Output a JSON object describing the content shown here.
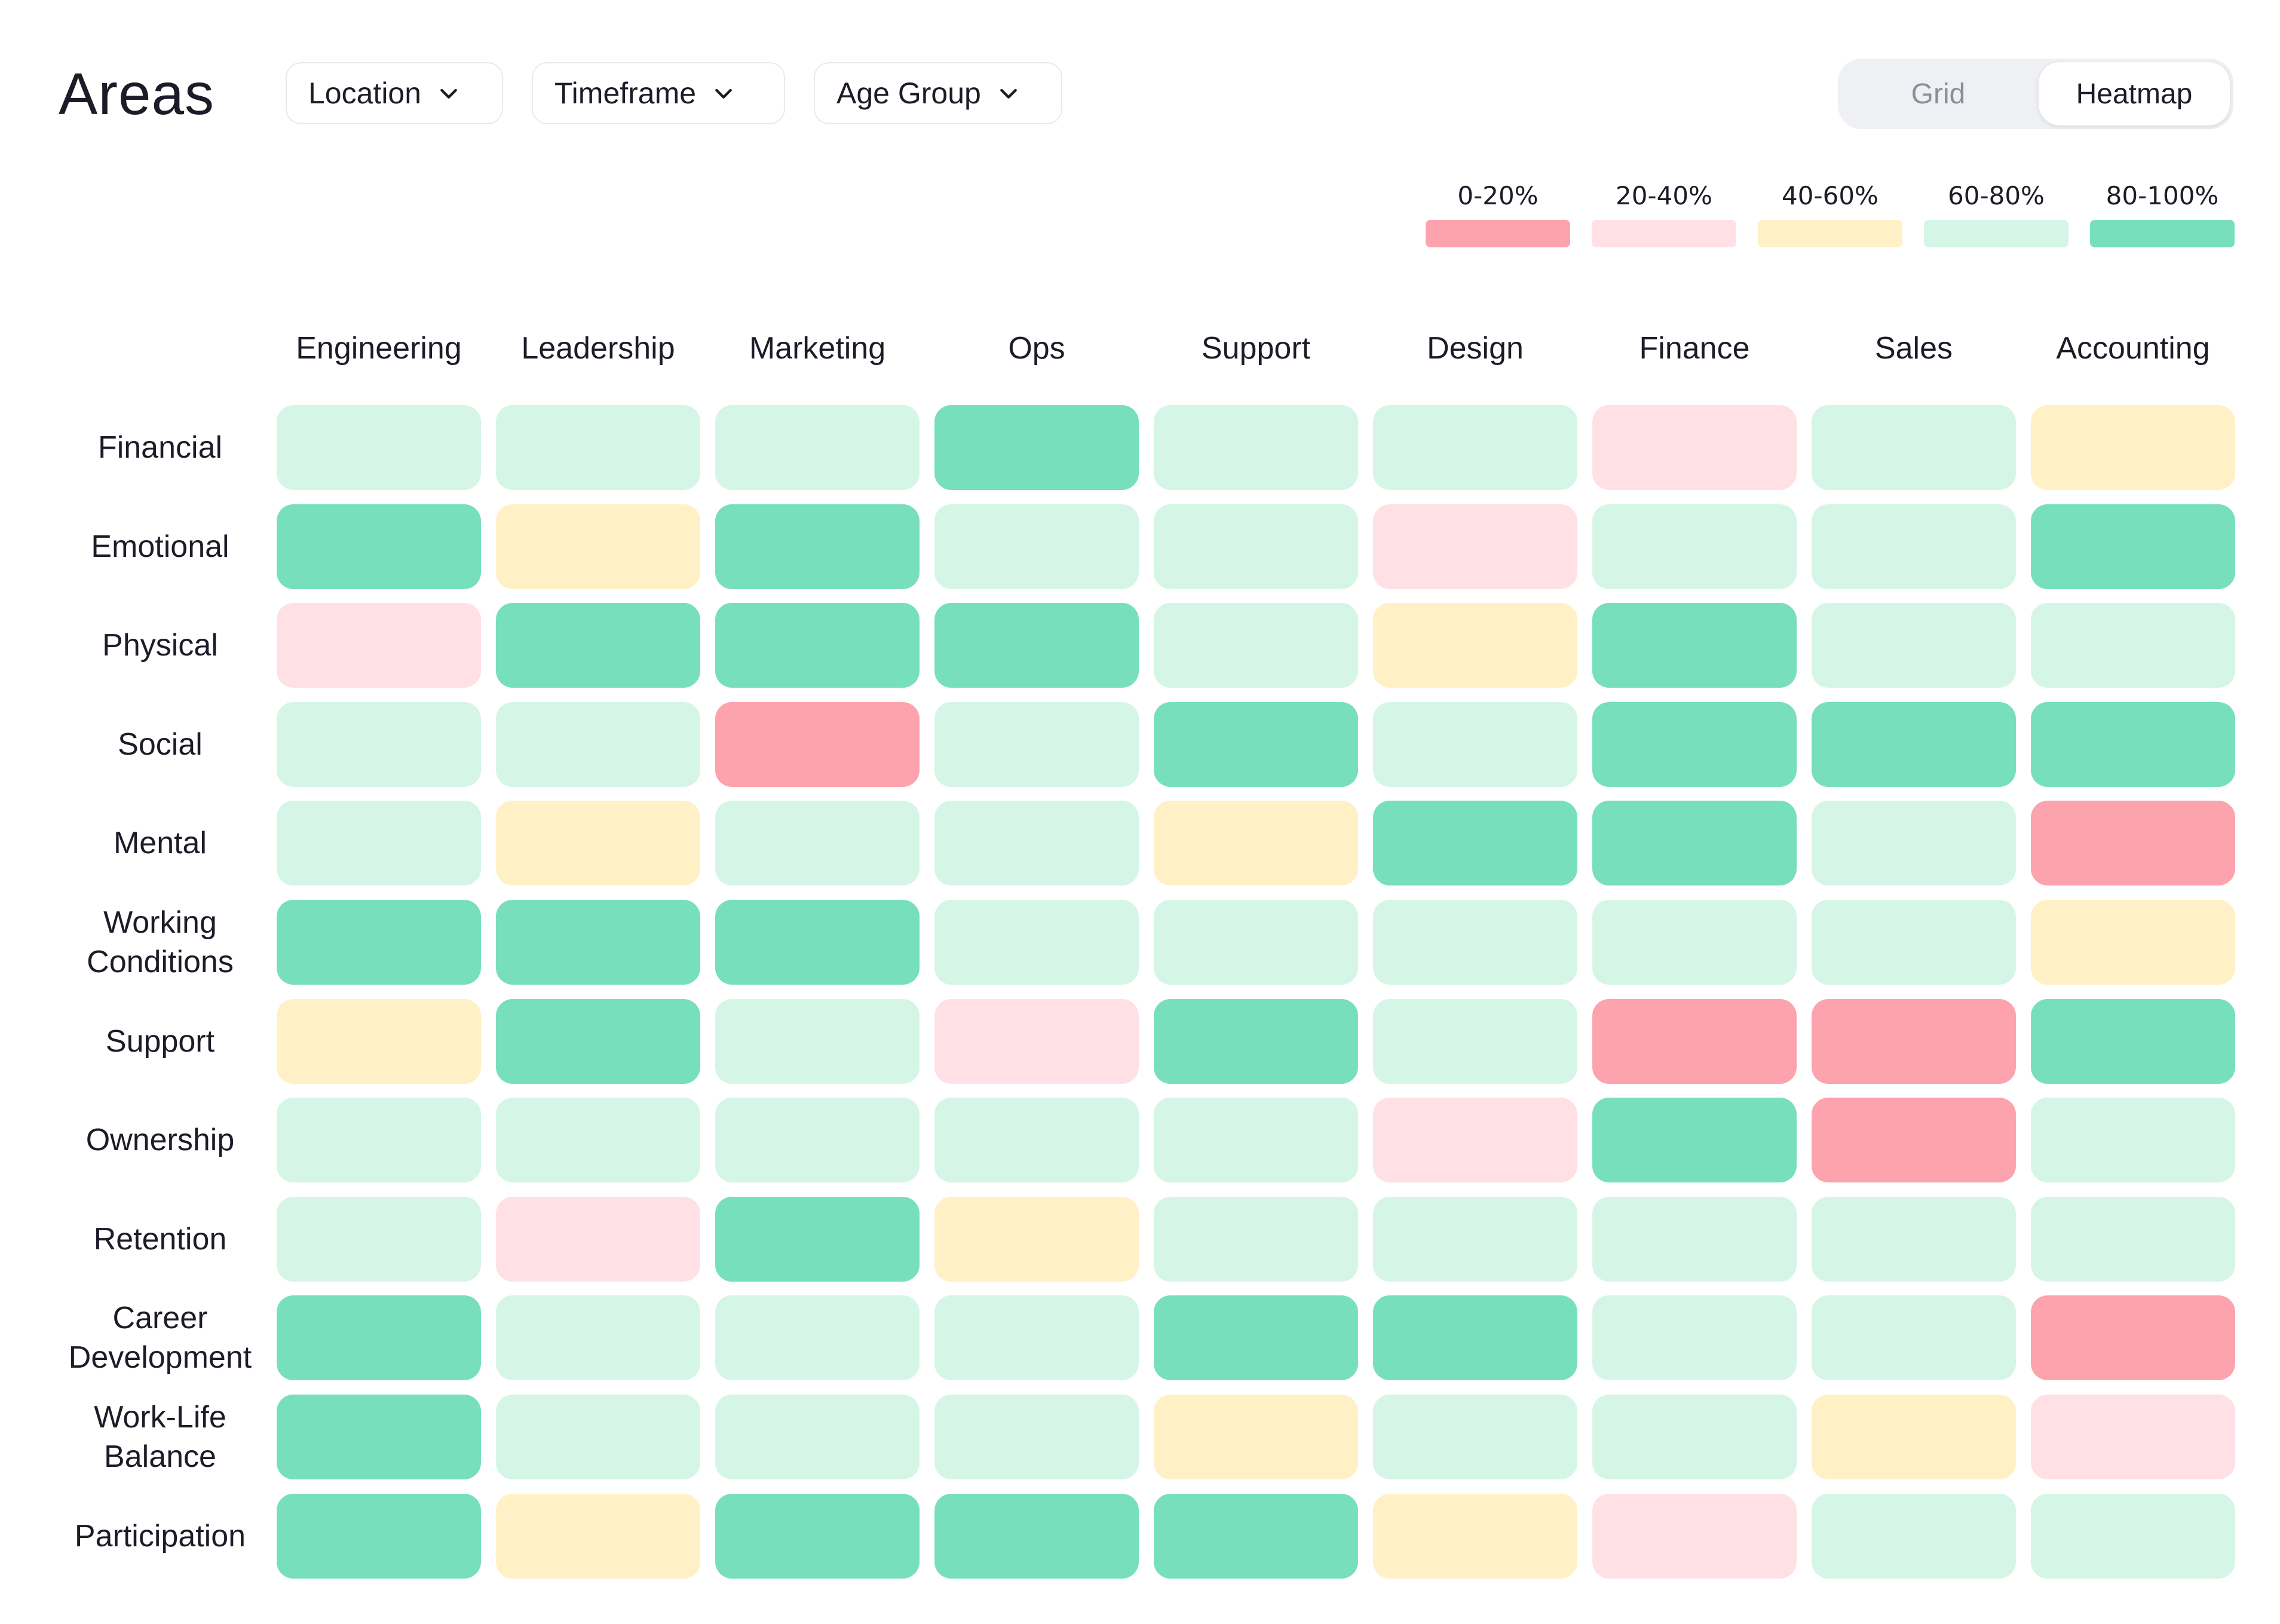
{
  "header": {
    "title": "Areas",
    "filters": [
      {
        "label": "Location",
        "icon": "chevron-down-icon"
      },
      {
        "label": "Timeframe",
        "icon": "chevron-down-icon"
      },
      {
        "label": "Age Group",
        "icon": "chevron-down-icon"
      }
    ]
  },
  "view_toggle": {
    "options": [
      "Grid",
      "Heatmap"
    ],
    "selected": "Heatmap"
  },
  "legend": [
    {
      "label": "0-20%",
      "color": "#fca3ae"
    },
    {
      "label": "20-40%",
      "color": "#ffe1e5"
    },
    {
      "label": "40-60%",
      "color": "#fff0c6"
    },
    {
      "label": "60-80%",
      "color": "#d5f6e7"
    },
    {
      "label": "80-100%",
      "color": "#78dfbd"
    }
  ],
  "chart_data": {
    "type": "heatmap",
    "columns": [
      "Engineering",
      "Leadership",
      "Marketing",
      "Ops",
      "Support",
      "Design",
      "Finance",
      "Sales",
      "Accounting"
    ],
    "rows": [
      "Financial",
      "Emotional",
      "Physical",
      "Social",
      "Mental",
      "Working Conditions",
      "Support",
      "Ownership",
      "Retention",
      "Career Development",
      "Work-Life Balance",
      "Participation"
    ],
    "bands": [
      "0-20%",
      "20-40%",
      "40-60%",
      "60-80%",
      "80-100%"
    ],
    "values": [
      [
        "60-80%",
        "60-80%",
        "60-80%",
        "80-100%",
        "60-80%",
        "60-80%",
        "20-40%",
        "60-80%",
        "40-60%"
      ],
      [
        "80-100%",
        "40-60%",
        "80-100%",
        "60-80%",
        "60-80%",
        "20-40%",
        "60-80%",
        "60-80%",
        "80-100%"
      ],
      [
        "20-40%",
        "80-100%",
        "80-100%",
        "80-100%",
        "60-80%",
        "40-60%",
        "80-100%",
        "60-80%",
        "60-80%"
      ],
      [
        "60-80%",
        "60-80%",
        "0-20%",
        "60-80%",
        "80-100%",
        "60-80%",
        "80-100%",
        "80-100%",
        "80-100%"
      ],
      [
        "60-80%",
        "40-60%",
        "60-80%",
        "60-80%",
        "40-60%",
        "80-100%",
        "80-100%",
        "60-80%",
        "0-20%"
      ],
      [
        "80-100%",
        "80-100%",
        "80-100%",
        "60-80%",
        "60-80%",
        "60-80%",
        "60-80%",
        "60-80%",
        "40-60%"
      ],
      [
        "40-60%",
        "80-100%",
        "60-80%",
        "20-40%",
        "80-100%",
        "60-80%",
        "0-20%",
        "0-20%",
        "80-100%"
      ],
      [
        "60-80%",
        "60-80%",
        "60-80%",
        "60-80%",
        "60-80%",
        "20-40%",
        "80-100%",
        "0-20%",
        "60-80%"
      ],
      [
        "60-80%",
        "20-40%",
        "80-100%",
        "40-60%",
        "60-80%",
        "60-80%",
        "60-80%",
        "60-80%",
        "60-80%"
      ],
      [
        "80-100%",
        "60-80%",
        "60-80%",
        "60-80%",
        "80-100%",
        "80-100%",
        "60-80%",
        "60-80%",
        "0-20%"
      ],
      [
        "80-100%",
        "60-80%",
        "60-80%",
        "60-80%",
        "40-60%",
        "60-80%",
        "60-80%",
        "40-60%",
        "20-40%"
      ],
      [
        "80-100%",
        "40-60%",
        "80-100%",
        "80-100%",
        "80-100%",
        "40-60%",
        "20-40%",
        "60-80%",
        "60-80%"
      ]
    ]
  }
}
